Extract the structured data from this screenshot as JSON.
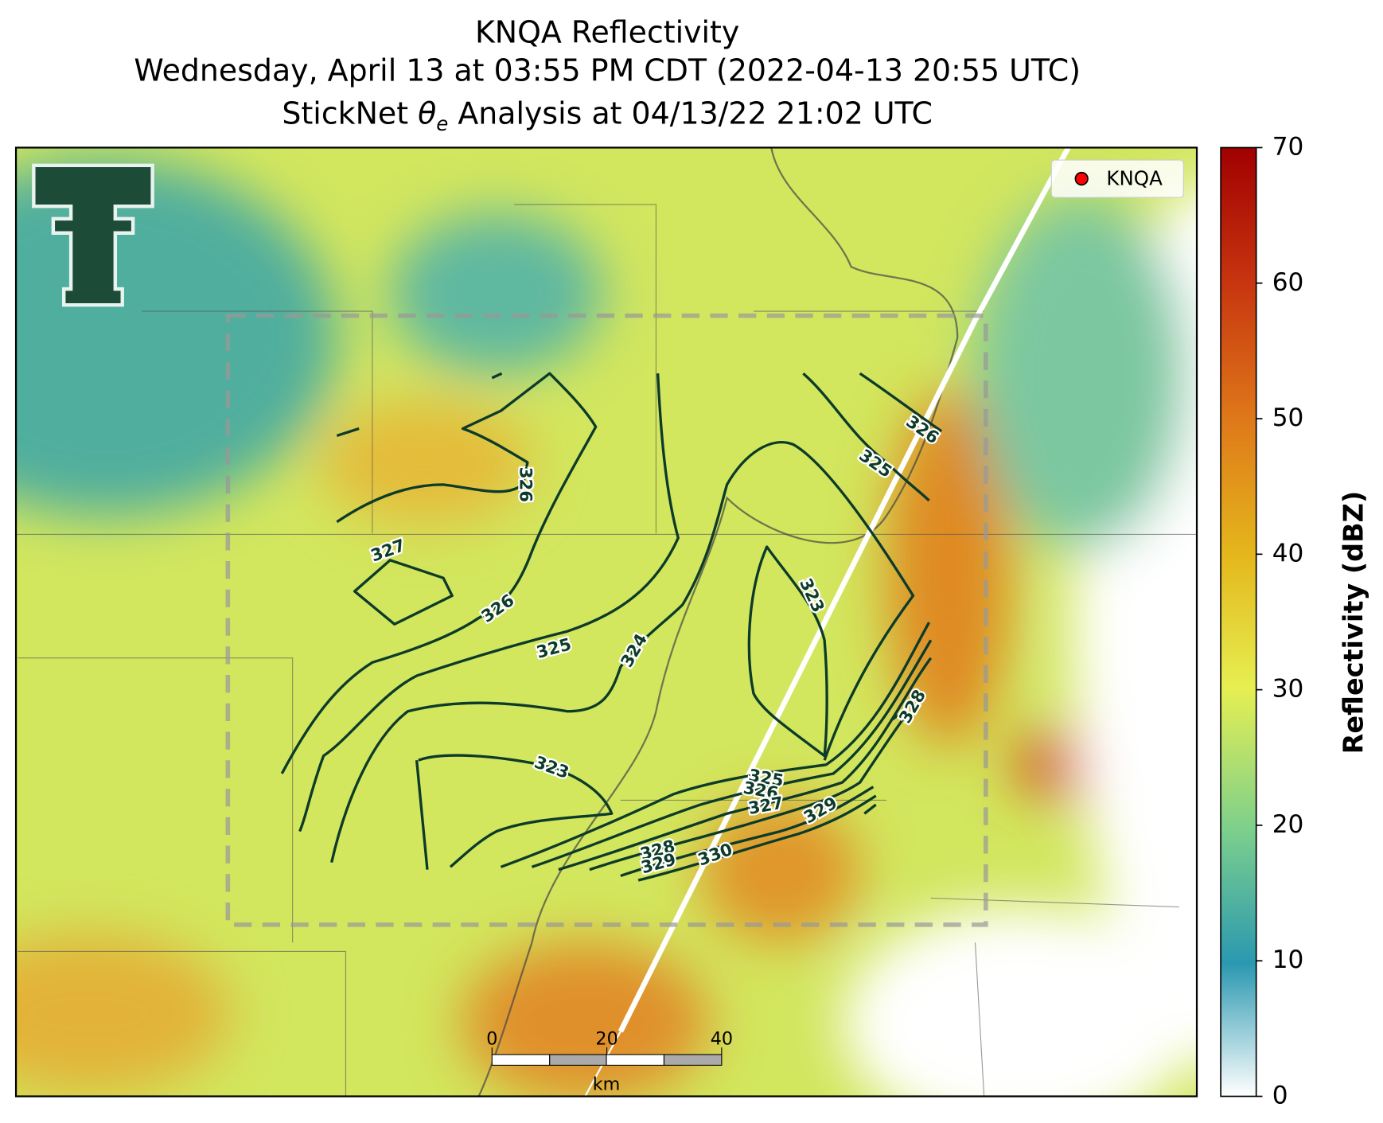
{
  "header": {
    "title_1": "KNQA Reflectivity",
    "title_2": "Wednesday, April 13 at 03:55 PM CDT (2022-04-13 20:55 UTC)",
    "title_3": {
      "before": "StickNet ",
      "symbol": "θ",
      "subscript": "e",
      "after": " Analysis at 04/13/22 21:02 UTC"
    }
  },
  "legend": {
    "label": "KNQA",
    "color": "#ff0000"
  },
  "colorbar": {
    "label": "Reflectivity (dBZ)",
    "lim": [
      0,
      70
    ],
    "ticks": [
      0,
      10,
      20,
      30,
      40,
      50,
      60,
      70
    ]
  },
  "scale_bar": {
    "lim": [
      0,
      40
    ],
    "ticks": [
      0,
      20,
      40
    ],
    "unit": "km"
  },
  "contour_labels": [
    "326",
    "327",
    "326",
    "325",
    "324",
    "323",
    "326",
    "325",
    "328",
    "323",
    "325",
    "326",
    "327",
    "329",
    "328",
    "329",
    "330"
  ]
}
